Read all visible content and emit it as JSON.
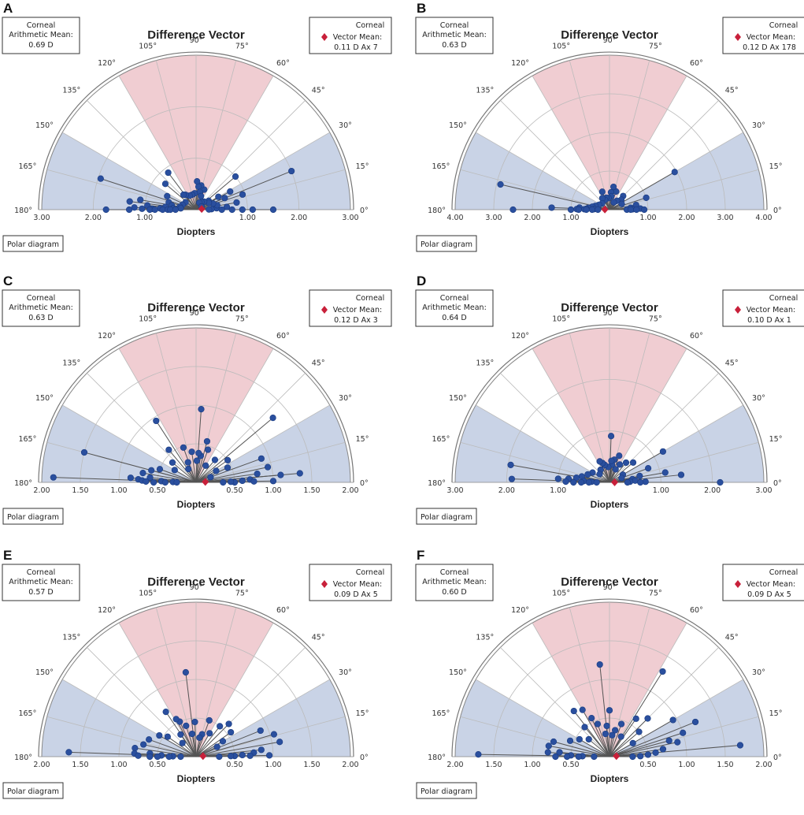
{
  "figure": {
    "title": "Difference Vector",
    "box_left_title": "Corneal",
    "box_left_sub": "Arithmetic Mean:",
    "box_right_title": "Corneal",
    "box_right_sub": "Vector Mean:",
    "button_label": "Polar diagram",
    "xlabel": "Diopters",
    "angle_labels": [
      "0°",
      "15°",
      "30°",
      "45°",
      "60°",
      "75°",
      "90°",
      "105°",
      "120°",
      "135°",
      "150°",
      "165°",
      "180°"
    ],
    "colors": {
      "pink_sector": "#f0cdd2",
      "blue_sector": "#c9d3e6",
      "point": "#2a4f9e",
      "point_edge": "#1a3b80",
      "line": "#555555",
      "mean_marker": "#c8203a",
      "grid": "#bbbbbb"
    }
  },
  "chart_data": [
    {
      "panel": "A",
      "type": "scatter",
      "coordinate_system": "polar (half)",
      "title": "Difference Vector",
      "xlabel": "Diopters",
      "rmax": 3.0,
      "tick_labels": [
        "3.00",
        "2.00",
        "1.00",
        "1.00",
        "2.00",
        "3.00"
      ],
      "arithmetic_mean": "0.69 D",
      "vector_mean": "0.11 D Ax 7",
      "mean_vector": {
        "r": 0.11,
        "angle_deg": 7
      },
      "points": [
        [
          2.0,
          22
        ],
        [
          0.95,
          18
        ],
        [
          0.8,
          10
        ],
        [
          0.6,
          5
        ],
        [
          0.4,
          4
        ],
        [
          0.3,
          2
        ],
        [
          0.25,
          1
        ],
        [
          1.5,
          0
        ],
        [
          1.1,
          0
        ],
        [
          0.9,
          0
        ],
        [
          0.7,
          0
        ],
        [
          0.5,
          0
        ],
        [
          1.0,
          40
        ],
        [
          0.75,
          28
        ],
        [
          0.6,
          22
        ],
        [
          0.5,
          30
        ],
        [
          0.42,
          12
        ],
        [
          0.35,
          20
        ],
        [
          0.3,
          35
        ],
        [
          0.28,
          28
        ],
        [
          0.22,
          45
        ],
        [
          0.18,
          55
        ],
        [
          0.15,
          65
        ],
        [
          0.12,
          30
        ],
        [
          0.42,
          68
        ],
        [
          0.48,
          78
        ],
        [
          0.45,
          84
        ],
        [
          0.55,
          88
        ],
        [
          0.35,
          78
        ],
        [
          0.28,
          70
        ],
        [
          0.32,
          95
        ],
        [
          0.3,
          105
        ],
        [
          0.3,
          115
        ],
        [
          0.35,
          125
        ],
        [
          0.38,
          130
        ],
        [
          0.25,
          145
        ],
        [
          0.28,
          160
        ],
        [
          0.32,
          170
        ],
        [
          0.3,
          175
        ],
        [
          0.9,
          127
        ],
        [
          0.78,
          140
        ],
        [
          0.62,
          155
        ],
        [
          0.55,
          165
        ],
        [
          0.48,
          170
        ],
        [
          0.6,
          175
        ],
        [
          0.45,
          177
        ],
        [
          0.7,
          178
        ],
        [
          0.85,
          179
        ],
        [
          1.95,
          162
        ],
        [
          1.1,
          170
        ],
        [
          1.3,
          173
        ],
        [
          0.95,
          175
        ],
        [
          1.2,
          178
        ],
        [
          1.05,
          179
        ],
        [
          1.75,
          180
        ],
        [
          1.3,
          180
        ],
        [
          0.9,
          180
        ],
        [
          0.8,
          180
        ],
        [
          0.65,
          180
        ],
        [
          0.55,
          180
        ],
        [
          0.5,
          180
        ],
        [
          0.4,
          180
        ]
      ]
    },
    {
      "panel": "B",
      "type": "scatter",
      "coordinate_system": "polar (half)",
      "title": "Difference Vector",
      "xlabel": "Diopters",
      "rmax": 4.0,
      "tick_labels": [
        "4.00",
        "3.00",
        "2.00",
        "1.00",
        "1.00",
        "2.00",
        "3.00",
        "4.00"
      ],
      "arithmetic_mean": "0.63 D",
      "vector_mean": "0.12 D Ax 178",
      "mean_vector": {
        "r": 0.12,
        "angle_deg": 178
      },
      "points": [
        [
          1.95,
          30
        ],
        [
          1.0,
          18
        ],
        [
          0.7,
          10
        ],
        [
          0.55,
          5
        ],
        [
          0.8,
          2
        ],
        [
          0.6,
          1
        ],
        [
          0.45,
          0
        ],
        [
          0.9,
          0
        ],
        [
          0.7,
          0
        ],
        [
          0.55,
          0
        ],
        [
          0.5,
          45
        ],
        [
          0.4,
          40
        ],
        [
          0.3,
          50
        ],
        [
          0.22,
          60
        ],
        [
          0.35,
          25
        ],
        [
          0.5,
          70
        ],
        [
          0.6,
          80
        ],
        [
          0.45,
          85
        ],
        [
          0.35,
          82
        ],
        [
          0.3,
          95
        ],
        [
          0.32,
          105
        ],
        [
          0.28,
          115
        ],
        [
          0.35,
          122
        ],
        [
          0.5,
          112
        ],
        [
          0.25,
          140
        ],
        [
          0.3,
          155
        ],
        [
          0.38,
          165
        ],
        [
          0.45,
          170
        ],
        [
          0.55,
          175
        ],
        [
          0.6,
          178
        ],
        [
          0.4,
          178
        ],
        [
          0.78,
          176
        ],
        [
          0.65,
          179
        ],
        [
          0.85,
          179
        ],
        [
          2.9,
          167
        ],
        [
          1.5,
          178
        ],
        [
          2.5,
          180
        ],
        [
          1.0,
          180
        ],
        [
          0.8,
          180
        ],
        [
          0.6,
          180
        ],
        [
          0.45,
          180
        ],
        [
          0.3,
          180
        ]
      ]
    },
    {
      "panel": "C",
      "type": "scatter",
      "coordinate_system": "polar (half)",
      "title": "Difference Vector",
      "xlabel": "Diopters",
      "rmax": 2.0,
      "tick_labels": [
        "2.00",
        "1.50",
        "1.00",
        "0.50",
        "0.50",
        "1.00",
        "1.50",
        "2.00"
      ],
      "arithmetic_mean": "0.63 D",
      "vector_mean": "0.12 D Ax 3",
      "mean_vector": {
        "r": 0.12,
        "angle_deg": 3
      },
      "points": [
        [
          1.3,
          40
        ],
        [
          1.35,
          5
        ],
        [
          1.1,
          5
        ],
        [
          0.95,
          12
        ],
        [
          0.9,
          20
        ],
        [
          0.8,
          8
        ],
        [
          0.7,
          3
        ],
        [
          0.6,
          2
        ],
        [
          0.5,
          0
        ],
        [
          1.0,
          1
        ],
        [
          0.75,
          1
        ],
        [
          0.45,
          1
        ],
        [
          0.35,
          0
        ],
        [
          0.5,
          35
        ],
        [
          0.45,
          25
        ],
        [
          0.38,
          50
        ],
        [
          0.3,
          30
        ],
        [
          0.2,
          20
        ],
        [
          0.25,
          60
        ],
        [
          0.55,
          75
        ],
        [
          0.45,
          70
        ],
        [
          0.35,
          80
        ],
        [
          0.95,
          86
        ],
        [
          0.38,
          85
        ],
        [
          0.28,
          88
        ],
        [
          0.4,
          98
        ],
        [
          0.48,
          110
        ],
        [
          0.28,
          112
        ],
        [
          0.2,
          120
        ],
        [
          0.95,
          123
        ],
        [
          0.55,
          130
        ],
        [
          0.4,
          140
        ],
        [
          0.32,
          150
        ],
        [
          0.5,
          160
        ],
        [
          0.6,
          165
        ],
        [
          0.7,
          170
        ],
        [
          0.6,
          174
        ],
        [
          0.75,
          177
        ],
        [
          0.45,
          178
        ],
        [
          0.3,
          179
        ],
        [
          1.5,
          165
        ],
        [
          1.85,
          178
        ],
        [
          0.85,
          176
        ],
        [
          0.7,
          178
        ],
        [
          0.65,
          179
        ],
        [
          0.55,
          180
        ],
        [
          0.4,
          180
        ],
        [
          0.25,
          180
        ]
      ]
    },
    {
      "panel": "D",
      "type": "scatter",
      "coordinate_system": "polar (half)",
      "title": "Difference Vector",
      "xlabel": "Diopters",
      "rmax": 3.0,
      "tick_labels": [
        "3.00",
        "2.00",
        "1.00",
        "1.00",
        "2.00",
        "3.00"
      ],
      "arithmetic_mean": "0.64 D",
      "vector_mean": "0.10 D Ax 1",
      "mean_vector": {
        "r": 0.1,
        "angle_deg": 1
      },
      "points": [
        [
          2.15,
          0
        ],
        [
          1.4,
          6
        ],
        [
          1.1,
          10
        ],
        [
          1.2,
          30
        ],
        [
          0.8,
          20
        ],
        [
          0.6,
          12
        ],
        [
          0.45,
          8
        ],
        [
          0.5,
          4
        ],
        [
          0.4,
          2
        ],
        [
          0.7,
          1
        ],
        [
          0.6,
          0
        ],
        [
          0.35,
          0
        ],
        [
          0.6,
          40
        ],
        [
          0.5,
          50
        ],
        [
          0.4,
          60
        ],
        [
          0.3,
          30
        ],
        [
          0.25,
          20
        ],
        [
          0.28,
          65
        ],
        [
          0.55,
          70
        ],
        [
          0.45,
          78
        ],
        [
          0.35,
          82
        ],
        [
          0.9,
          88
        ],
        [
          0.42,
          85
        ],
        [
          0.3,
          95
        ],
        [
          0.35,
          105
        ],
        [
          0.4,
          110
        ],
        [
          0.45,
          115
        ],
        [
          0.3,
          125
        ],
        [
          0.25,
          140
        ],
        [
          0.38,
          150
        ],
        [
          0.45,
          160
        ],
        [
          0.55,
          168
        ],
        [
          0.65,
          172
        ],
        [
          0.8,
          175
        ],
        [
          0.5,
          177
        ],
        [
          0.35,
          178
        ],
        [
          1.95,
          170
        ],
        [
          1.9,
          178
        ],
        [
          1.0,
          176
        ],
        [
          0.85,
          179
        ],
        [
          0.7,
          180
        ],
        [
          0.55,
          180
        ],
        [
          0.4,
          180
        ],
        [
          0.25,
          180
        ]
      ]
    },
    {
      "panel": "E",
      "type": "scatter",
      "coordinate_system": "polar (half)",
      "title": "Difference Vector",
      "xlabel": "Diopters",
      "rmax": 2.0,
      "tick_labels": [
        "2.00",
        "1.50",
        "1.00",
        "0.50",
        "0.50",
        "1.00",
        "1.50",
        "2.00"
      ],
      "arithmetic_mean": "0.57 D",
      "vector_mean": "0.09 D Ax 5",
      "mean_vector": {
        "r": 0.09,
        "angle_deg": 5
      },
      "points": [
        [
          1.1,
          10
        ],
        [
          1.05,
          16
        ],
        [
          0.9,
          22
        ],
        [
          0.85,
          6
        ],
        [
          0.75,
          4
        ],
        [
          0.6,
          2
        ],
        [
          0.5,
          1
        ],
        [
          0.95,
          1
        ],
        [
          0.7,
          1
        ],
        [
          0.45,
          1
        ],
        [
          0.3,
          0
        ],
        [
          0.55,
          35
        ],
        [
          0.6,
          45
        ],
        [
          0.5,
          52
        ],
        [
          0.4,
          30
        ],
        [
          0.3,
          25
        ],
        [
          0.35,
          60
        ],
        [
          0.5,
          70
        ],
        [
          0.3,
          75
        ],
        [
          0.25,
          80
        ],
        [
          1.1,
          97
        ],
        [
          0.45,
          92
        ],
        [
          0.3,
          100
        ],
        [
          0.42,
          108
        ],
        [
          0.5,
          115
        ],
        [
          0.55,
          118
        ],
        [
          0.35,
          125
        ],
        [
          0.25,
          135
        ],
        [
          0.7,
          124
        ],
        [
          0.45,
          145
        ],
        [
          0.55,
          150
        ],
        [
          0.65,
          160
        ],
        [
          0.7,
          167
        ],
        [
          0.8,
          172
        ],
        [
          0.6,
          176
        ],
        [
          0.45,
          178
        ],
        [
          0.3,
          179
        ],
        [
          1.65,
          178
        ],
        [
          0.8,
          177
        ],
        [
          0.75,
          179
        ],
        [
          0.6,
          180
        ],
        [
          0.5,
          180
        ],
        [
          0.35,
          180
        ],
        [
          0.2,
          180
        ]
      ]
    },
    {
      "panel": "F",
      "type": "scatter",
      "coordinate_system": "polar (half)",
      "title": "Difference Vector",
      "xlabel": "Diopters",
      "rmax": 2.0,
      "tick_labels": [
        "2.00",
        "1.50",
        "1.00",
        "0.50",
        "0.50",
        "1.00",
        "1.50",
        "2.00"
      ],
      "arithmetic_mean": "0.60 D",
      "vector_mean": "0.09 D Ax 5",
      "mean_vector": {
        "r": 0.09,
        "angle_deg": 5
      },
      "points": [
        [
          1.7,
          5
        ],
        [
          1.2,
          22
        ],
        [
          1.0,
          18
        ],
        [
          0.9,
          12
        ],
        [
          0.95,
          30
        ],
        [
          0.8,
          15
        ],
        [
          0.7,
          8
        ],
        [
          0.6,
          5
        ],
        [
          0.5,
          3
        ],
        [
          0.4,
          1
        ],
        [
          0.3,
          0
        ],
        [
          1.3,
          58
        ],
        [
          0.7,
          45
        ],
        [
          0.6,
          55
        ],
        [
          0.5,
          40
        ],
        [
          0.35,
          30
        ],
        [
          0.3,
          60
        ],
        [
          0.45,
          70
        ],
        [
          0.35,
          78
        ],
        [
          0.28,
          83
        ],
        [
          1.2,
          96
        ],
        [
          0.6,
          90
        ],
        [
          0.4,
          95
        ],
        [
          0.3,
          100
        ],
        [
          0.45,
          110
        ],
        [
          0.55,
          115
        ],
        [
          0.7,
          120
        ],
        [
          0.75,
          128
        ],
        [
          0.5,
          130
        ],
        [
          0.35,
          140
        ],
        [
          0.45,
          150
        ],
        [
          0.55,
          158
        ],
        [
          0.75,
          165
        ],
        [
          0.8,
          170
        ],
        [
          0.65,
          175
        ],
        [
          0.5,
          178
        ],
        [
          0.35,
          179
        ],
        [
          1.7,
          179
        ],
        [
          0.8,
          176
        ],
        [
          0.7,
          180
        ],
        [
          0.55,
          180
        ],
        [
          0.4,
          180
        ],
        [
          0.2,
          180
        ]
      ]
    }
  ]
}
